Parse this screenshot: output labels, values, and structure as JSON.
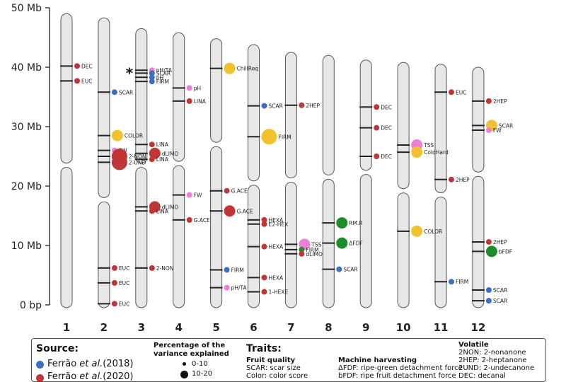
{
  "y_axis": {
    "ticks": [
      {
        "value": 50,
        "label": "50 Mb"
      },
      {
        "value": 40,
        "label": "40 Mb"
      },
      {
        "value": 30,
        "label": "30 Mb"
      },
      {
        "value": 20,
        "label": "20 Mb"
      },
      {
        "value": 10,
        "label": "10 Mb"
      },
      {
        "value": 0,
        "label": "0 bp"
      }
    ]
  },
  "chromosomes": [
    {
      "label": "1",
      "length": 49.0,
      "centromere": 23.5
    },
    {
      "label": "2",
      "length": 48.3,
      "centromere": 17.7
    },
    {
      "label": "3",
      "length": 46.5,
      "centromere": 23.5
    },
    {
      "label": "4",
      "length": 45.8,
      "centromere": 23.8
    },
    {
      "label": "5",
      "length": 44.8,
      "centromere": 27.0
    },
    {
      "label": "6",
      "length": 43.8,
      "centromere": 20.5
    },
    {
      "label": "7",
      "length": 42.5,
      "centromere": 21.0
    },
    {
      "label": "8",
      "length": 42.0,
      "centromere": 21.5
    },
    {
      "label": "9",
      "length": 41.2,
      "centromere": 22.3
    },
    {
      "label": "10",
      "length": 40.8,
      "centromere": 19.2
    },
    {
      "label": "11",
      "length": 40.5,
      "centromere": 18.5
    },
    {
      "label": "12",
      "length": 40.0,
      "centromere": 22.0
    }
  ],
  "qtls": [
    {
      "chr": 1,
      "pos": 40.2,
      "label": "DEC",
      "source": 2020,
      "size": 1
    },
    {
      "chr": 1,
      "pos": 37.7,
      "label": "EUC",
      "source": 2020,
      "size": 1
    },
    {
      "chr": 2,
      "pos": 35.8,
      "label": "SCAR",
      "source": 2018,
      "size": 1
    },
    {
      "chr": 2,
      "pos": 28.5,
      "label": "COLOR",
      "source": 2018,
      "size": 2,
      "trait": "yellow"
    },
    {
      "chr": 2,
      "pos": 26.0,
      "label": "FW",
      "source": 2018,
      "size": 1,
      "trait": "pink"
    },
    {
      "chr": 2,
      "pos": 25.0,
      "label": "2-NON",
      "source": 2020,
      "size": 3
    },
    {
      "chr": 2,
      "pos": 24.0,
      "label": "2-UND",
      "source": 2020,
      "size": 3
    },
    {
      "chr": 2,
      "pos": 6.2,
      "label": "EUC",
      "source": 2020,
      "size": 1
    },
    {
      "chr": 2,
      "pos": 3.7,
      "label": "EUC",
      "source": 2020,
      "size": 1
    },
    {
      "chr": 2,
      "pos": 0.2,
      "label": "EUC",
      "source": 2020,
      "size": 1
    },
    {
      "chr": 3,
      "pos": 39.5,
      "label": "pH/TA",
      "source": 2018,
      "size": 1,
      "trait": "pink"
    },
    {
      "chr": 3,
      "pos": 39.0,
      "label": "SCAR",
      "source": 2018,
      "size": 1
    },
    {
      "chr": 3,
      "pos": 38.3,
      "label": "pH",
      "source": 2018,
      "size": 1
    },
    {
      "chr": 3,
      "pos": 37.6,
      "label": "FIRM",
      "source": 2018,
      "size": 1
    },
    {
      "chr": 3,
      "pos": 27.0,
      "label": "LINA",
      "source": 2020,
      "size": 1
    },
    {
      "chr": 3,
      "pos": 25.5,
      "label": "dLIMO",
      "source": 2020,
      "size": 2
    },
    {
      "chr": 3,
      "pos": 24.5,
      "label": "LINA",
      "source": 2020,
      "size": 1
    },
    {
      "chr": 3,
      "pos": 16.5,
      "label": "dLIMO",
      "source": 2020,
      "size": 2
    },
    {
      "chr": 3,
      "pos": 15.8,
      "label": "LINA",
      "source": 2020,
      "size": 1
    },
    {
      "chr": 3,
      "pos": 6.2,
      "label": "2-NON",
      "source": 2020,
      "size": 1
    },
    {
      "chr": 4,
      "pos": 36.5,
      "label": "pH",
      "source": 2018,
      "size": 1,
      "trait": "pink"
    },
    {
      "chr": 4,
      "pos": 34.3,
      "label": "LINA",
      "source": 2020,
      "size": 1
    },
    {
      "chr": 4,
      "pos": 18.5,
      "label": "FW",
      "source": 2018,
      "size": 1,
      "trait": "pink"
    },
    {
      "chr": 4,
      "pos": 14.3,
      "label": "G.ACE",
      "source": 2020,
      "size": 1
    },
    {
      "chr": 5,
      "pos": 39.8,
      "label": "ChillReq",
      "source": 2018,
      "size": 2,
      "trait": "yellow"
    },
    {
      "chr": 5,
      "pos": 19.2,
      "label": "G.ACE",
      "source": 2020,
      "size": 1
    },
    {
      "chr": 5,
      "pos": 15.8,
      "label": "G.ACE",
      "source": 2020,
      "size": 2
    },
    {
      "chr": 5,
      "pos": 5.9,
      "label": "FIRM",
      "source": 2018,
      "size": 1
    },
    {
      "chr": 5,
      "pos": 2.9,
      "label": "pH/TA",
      "source": 2018,
      "size": 1,
      "trait": "pink"
    },
    {
      "chr": 6,
      "pos": 33.5,
      "label": "SCAR",
      "source": 2018,
      "size": 1
    },
    {
      "chr": 6,
      "pos": 28.3,
      "label": "FIRM",
      "source": 2018,
      "size": 3,
      "trait": "yellow"
    },
    {
      "chr": 6,
      "pos": 14.3,
      "label": "HEXA",
      "source": 2020,
      "size": 1
    },
    {
      "chr": 6,
      "pos": 13.6,
      "label": "E2-HEX",
      "source": 2020,
      "size": 1
    },
    {
      "chr": 6,
      "pos": 9.8,
      "label": "HEXA",
      "source": 2020,
      "size": 1
    },
    {
      "chr": 6,
      "pos": 4.6,
      "label": "HEXA",
      "source": 2020,
      "size": 1
    },
    {
      "chr": 6,
      "pos": 2.2,
      "label": "1-HEXE",
      "source": 2020,
      "size": 1
    },
    {
      "chr": 7,
      "pos": 33.6,
      "label": "2HEP",
      "source": 2020,
      "size": 1
    },
    {
      "chr": 7,
      "pos": 10.2,
      "label": "TSS",
      "source": 2018,
      "size": 2,
      "trait": "pink"
    },
    {
      "chr": 7,
      "pos": 9.3,
      "label": "FIRM",
      "source": 2018,
      "size": 1,
      "trait": "green"
    },
    {
      "chr": 7,
      "pos": 8.6,
      "label": "dLIMO",
      "source": 2020,
      "size": 1
    },
    {
      "chr": 8,
      "pos": 13.8,
      "label": "RM.R",
      "source": 2018,
      "size": 2,
      "trait": "green"
    },
    {
      "chr": 8,
      "pos": 10.4,
      "label": "ΔFDF",
      "source": 2018,
      "size": 2,
      "trait": "green"
    },
    {
      "chr": 8,
      "pos": 6.0,
      "label": "SCAR",
      "source": 2018,
      "size": 1
    },
    {
      "chr": 9,
      "pos": 33.3,
      "label": "DEC",
      "source": 2020,
      "size": 1
    },
    {
      "chr": 9,
      "pos": 29.8,
      "label": "DEC",
      "source": 2020,
      "size": 1
    },
    {
      "chr": 9,
      "pos": 25.0,
      "label": "DEC",
      "source": 2020,
      "size": 1
    },
    {
      "chr": 10,
      "pos": 26.9,
      "label": "TSS",
      "source": 2018,
      "size": 2,
      "trait": "pink"
    },
    {
      "chr": 10,
      "pos": 25.7,
      "label": "ColdHard",
      "source": 2018,
      "size": 2,
      "trait": "yellow"
    },
    {
      "chr": 10,
      "pos": 12.4,
      "label": "COLOR",
      "source": 2018,
      "size": 2,
      "trait": "yellow"
    },
    {
      "chr": 11,
      "pos": 35.8,
      "label": "EUC",
      "source": 2020,
      "size": 1
    },
    {
      "chr": 11,
      "pos": 21.1,
      "label": "2HEP",
      "source": 2020,
      "size": 1
    },
    {
      "chr": 11,
      "pos": 3.9,
      "label": "FIRM",
      "source": 2018,
      "size": 1
    },
    {
      "chr": 12,
      "pos": 34.3,
      "label": "2HEP",
      "source": 2020,
      "size": 1
    },
    {
      "chr": 12,
      "pos": 30.2,
      "label": "SCAR",
      "source": 2018,
      "size": 2,
      "trait": "yellow"
    },
    {
      "chr": 12,
      "pos": 29.4,
      "label": "FW",
      "source": 2018,
      "size": 1,
      "trait": "pink"
    },
    {
      "chr": 12,
      "pos": 10.6,
      "label": "2HEP",
      "source": 2020,
      "size": 1
    },
    {
      "chr": 12,
      "pos": 9.0,
      "label": "bFDF",
      "source": 2018,
      "size": 2,
      "trait": "green"
    },
    {
      "chr": 12,
      "pos": 2.5,
      "label": "SCAR",
      "source": 2018,
      "size": 1
    },
    {
      "chr": 12,
      "pos": 0.7,
      "label": "SCAR",
      "source": 2018,
      "size": 1
    }
  ],
  "asterisk": {
    "chr": 3,
    "pos": 39.2,
    "text": "*"
  },
  "colors": {
    "src2018": "#3a6fc4",
    "src2020": "#c03535",
    "yellow": "#f2c12e",
    "pink": "#ee7fd6",
    "green": "#1f8c2a",
    "chrom_fill": "#e7e7e7",
    "chrom_stroke": "#555555"
  },
  "legend": {
    "source_title": "Source:",
    "src2018_a": "Ferrão ",
    "src2018_em": "et al.",
    "src2018_b": "(2018)",
    "src2020_a": "Ferrão ",
    "src2020_em": "et al.",
    "src2020_b": "(2020)",
    "variance_title1": "Percentage of the",
    "variance_title2": "variance explained",
    "v1": "0-10",
    "v2": "10-20",
    "traits_title": "Traits:",
    "fq_title": "Fruit quality",
    "fq1": "SCAR: scar size",
    "fq2": "Color: color score",
    "mh_title": "Machine harvesting",
    "mh1": "ΔFDF: ripe-green detachment force",
    "mh2": "bFDF: ripe fruit detachment force",
    "vol_title": "Volatile",
    "vol1": "2NON: 2-nonanone",
    "vol2": "2HEP: 2-heptanone",
    "vol3": "2UND: 2-undecanone",
    "vol4": "DEC: decanal"
  }
}
